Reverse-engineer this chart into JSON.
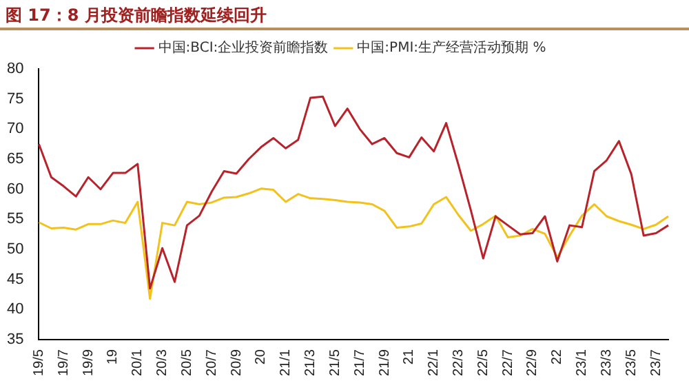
{
  "chart_data": {
    "type": "line",
    "title": "图 17：8 月投资前瞻指数延续回升",
    "categories": [
      "19/5",
      null,
      "19/7",
      null,
      "19/9",
      null,
      "19",
      null,
      "20/1",
      null,
      "20/3",
      null,
      "20/5",
      null,
      "20/7",
      null,
      "20/9",
      null,
      "20",
      null,
      "21/1",
      null,
      "21/3",
      null,
      "21/5",
      null,
      "21/7",
      null,
      "21/9",
      null,
      "21",
      null,
      "22/1",
      null,
      "22/3",
      null,
      "22/5",
      null,
      "22/7",
      null,
      "22/9",
      null,
      "22",
      null,
      "23/1",
      null,
      "23/3",
      null,
      "23/5",
      null,
      "23/7",
      null
    ],
    "series": [
      {
        "name": "中国:BCI:企业投资前瞻指数",
        "color": "#b8232b",
        "values": [
          67.5,
          62,
          60.5,
          58.8,
          62,
          60,
          62.7,
          62.7,
          64.2,
          43.5,
          50.2,
          44.6,
          54,
          55.6,
          59.6,
          63,
          62.6,
          65,
          67,
          68.5,
          66.8,
          68.2,
          75.2,
          75.4,
          70.5,
          73.4,
          70,
          67.5,
          68.5,
          66,
          65.3,
          68.6,
          66.3,
          71,
          64,
          56.5,
          48.5,
          55.5,
          54,
          52.5,
          52.7,
          55.5,
          48,
          54,
          53.7,
          63,
          64.8,
          68,
          62.5,
          52.3,
          52.7,
          54
        ]
      },
      {
        "name": "中国:PMI:生产经营活动预期 %",
        "color": "#f2c21b",
        "values": [
          54.5,
          53.5,
          53.6,
          53.3,
          54.2,
          54.2,
          54.8,
          54.4,
          57.9,
          41.8,
          54.4,
          54,
          57.9,
          57.5,
          57.8,
          58.6,
          58.7,
          59.3,
          60.1,
          59.9,
          57.9,
          59.2,
          58.5,
          58.4,
          58.2,
          57.9,
          57.8,
          57.5,
          56.4,
          53.6,
          53.8,
          54.3,
          57.5,
          58.7,
          55.7,
          53.1,
          54.2,
          55.6,
          52,
          52.3,
          53.4,
          52.6,
          48.7,
          52.3,
          55.6,
          57.5,
          55.5,
          54.7,
          54.1,
          53.4,
          54.1,
          55.5
        ]
      }
    ],
    "ylim": [
      35,
      80
    ],
    "yticks": [
      35,
      40,
      45,
      50,
      55,
      60,
      65,
      70,
      75,
      80
    ],
    "grid": false,
    "legend": "top",
    "marker": "none",
    "line_style": "solid"
  }
}
